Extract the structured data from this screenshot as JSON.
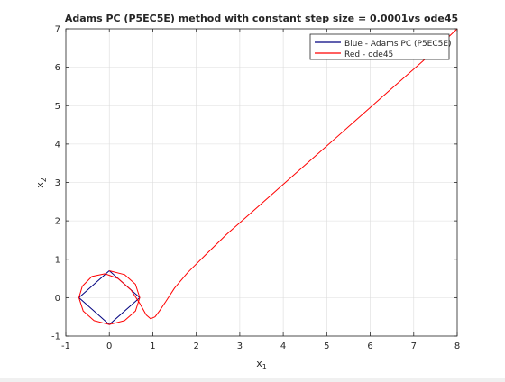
{
  "chart_data": {
    "type": "line",
    "title": "Adams PC (P5EC5E) method with constant step size = 0.0001vs ode45",
    "xlabel_base": "x",
    "xlabel_sub": "1",
    "ylabel_base": "x",
    "ylabel_sub": "2",
    "xlim": [
      -1,
      8
    ],
    "ylim": [
      -1,
      7
    ],
    "xticks": [
      -1,
      0,
      1,
      2,
      3,
      4,
      5,
      6,
      7,
      8
    ],
    "yticks": [
      -1,
      0,
      1,
      2,
      3,
      4,
      5,
      6,
      7
    ],
    "grid": true,
    "legend_position": "top-right",
    "series": [
      {
        "name": "Blue - Adams PC (P5EC5E)",
        "color": "#00007f",
        "x": [
          0.0,
          0.7,
          0.0,
          -0.7,
          0.0
        ],
        "y": [
          0.7,
          0.0,
          -0.7,
          0.0,
          0.7
        ]
      },
      {
        "name": "Red - ode45",
        "color": "#ff0000",
        "x": [
          0.0,
          0.35,
          0.6,
          0.7,
          0.6,
          0.35,
          0.0,
          -0.35,
          -0.6,
          -0.7,
          -0.62,
          -0.4,
          -0.1,
          0.2,
          0.5,
          0.7,
          0.85,
          0.95,
          1.05,
          1.15,
          1.3,
          1.5,
          1.8,
          2.2,
          2.7,
          3.3,
          4.0,
          4.8,
          5.6,
          6.4,
          7.2,
          8.0
        ],
        "y": [
          0.7,
          0.6,
          0.35,
          0.0,
          -0.35,
          -0.6,
          -0.7,
          -0.6,
          -0.35,
          0.0,
          0.3,
          0.55,
          0.62,
          0.5,
          0.2,
          -0.15,
          -0.45,
          -0.55,
          -0.5,
          -0.35,
          -0.1,
          0.25,
          0.65,
          1.1,
          1.65,
          2.25,
          2.95,
          3.75,
          4.55,
          5.35,
          6.15,
          7.0
        ]
      }
    ]
  }
}
